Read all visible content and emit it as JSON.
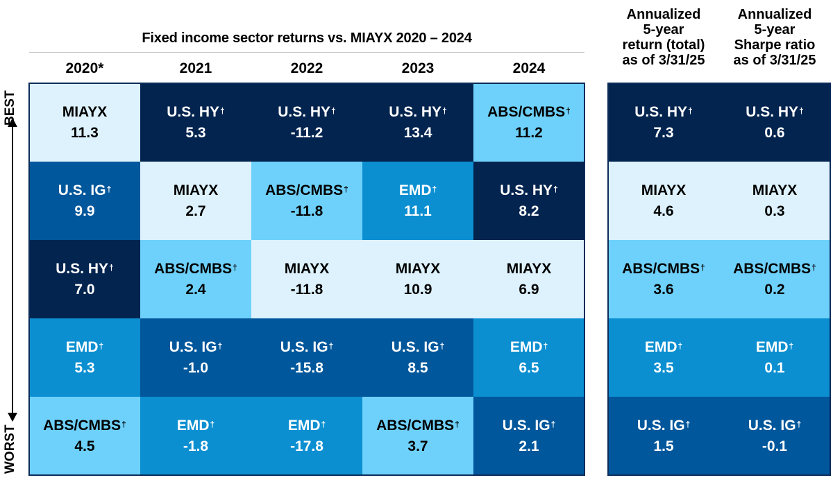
{
  "chart_data": {
    "type": "table",
    "title": "Fixed income sector returns vs. MIAYX 2020 – 2024",
    "axis_labels": {
      "top": "BEST",
      "bottom": "WORST"
    },
    "years": [
      "2020*",
      "2021",
      "2022",
      "2023",
      "2024"
    ],
    "year_columns": [
      [
        {
          "label": "MIAYX",
          "dagger": false,
          "value": "11.3"
        },
        {
          "label": "U.S. IG",
          "dagger": true,
          "value": "9.9"
        },
        {
          "label": "U.S. HY",
          "dagger": true,
          "value": "7.0"
        },
        {
          "label": "EMD",
          "dagger": true,
          "value": "5.3"
        },
        {
          "label": "ABS/CMBS",
          "dagger": true,
          "value": "4.5"
        }
      ],
      [
        {
          "label": "U.S. HY",
          "dagger": true,
          "value": "5.3"
        },
        {
          "label": "MIAYX",
          "dagger": false,
          "value": "2.7"
        },
        {
          "label": "ABS/CMBS",
          "dagger": true,
          "value": "2.4"
        },
        {
          "label": "U.S. IG",
          "dagger": true,
          "value": "-1.0"
        },
        {
          "label": "EMD",
          "dagger": true,
          "value": "-1.8"
        }
      ],
      [
        {
          "label": "U.S. HY",
          "dagger": true,
          "value": "-11.2"
        },
        {
          "label": "ABS/CMBS",
          "dagger": true,
          "value": "-11.8"
        },
        {
          "label": "MIAYX",
          "dagger": false,
          "value": "-11.8"
        },
        {
          "label": "U.S. IG",
          "dagger": true,
          "value": "-15.8"
        },
        {
          "label": "EMD",
          "dagger": true,
          "value": "-17.8"
        }
      ],
      [
        {
          "label": "U.S. HY",
          "dagger": true,
          "value": "13.4"
        },
        {
          "label": "EMD",
          "dagger": true,
          "value": "11.1"
        },
        {
          "label": "MIAYX",
          "dagger": false,
          "value": "10.9"
        },
        {
          "label": "U.S. IG",
          "dagger": true,
          "value": "8.5"
        },
        {
          "label": "ABS/CMBS",
          "dagger": true,
          "value": "3.7"
        }
      ],
      [
        {
          "label": "ABS/CMBS",
          "dagger": true,
          "value": "11.2"
        },
        {
          "label": "U.S. HY",
          "dagger": true,
          "value": "8.2"
        },
        {
          "label": "MIAYX",
          "dagger": false,
          "value": "6.9"
        },
        {
          "label": "EMD",
          "dagger": true,
          "value": "6.5"
        },
        {
          "label": "U.S. IG",
          "dagger": true,
          "value": "2.1"
        }
      ]
    ],
    "summary_columns": [
      {
        "header": [
          "Annualized",
          "5-year",
          "return (total)",
          "as of 3/31/25"
        ],
        "cells": [
          {
            "label": "U.S. HY",
            "dagger": true,
            "value": "7.3"
          },
          {
            "label": "MIAYX",
            "dagger": false,
            "value": "4.6"
          },
          {
            "label": "ABS/CMBS",
            "dagger": true,
            "value": "3.6"
          },
          {
            "label": "EMD",
            "dagger": true,
            "value": "3.5"
          },
          {
            "label": "U.S. IG",
            "dagger": true,
            "value": "1.5"
          }
        ]
      },
      {
        "header": [
          "Annualized",
          "5-year",
          "Sharpe ratio",
          "as of 3/31/25"
        ],
        "cells": [
          {
            "label": "U.S. HY",
            "dagger": true,
            "value": "0.6"
          },
          {
            "label": "MIAYX",
            "dagger": false,
            "value": "0.3"
          },
          {
            "label": "ABS/CMBS",
            "dagger": true,
            "value": "0.2"
          },
          {
            "label": "EMD",
            "dagger": true,
            "value": "0.1"
          },
          {
            "label": "U.S. IG",
            "dagger": true,
            "value": "-0.1"
          }
        ]
      }
    ],
    "dagger_symbol": "†",
    "sector_colors": {
      "MIAYX": "#ddf2fd",
      "U.S. HY": "#03244f",
      "U.S. IG": "#00579b",
      "EMD": "#0b8fd1",
      "ABS/CMBS": "#6ed1fb"
    },
    "text_colors": {
      "MIAYX": "#000000",
      "U.S. HY": "#ffffff",
      "U.S. IG": "#ffffff",
      "EMD": "#ffffff",
      "ABS/CMBS": "#000000"
    },
    "frame_color": "#0b2c5a"
  }
}
